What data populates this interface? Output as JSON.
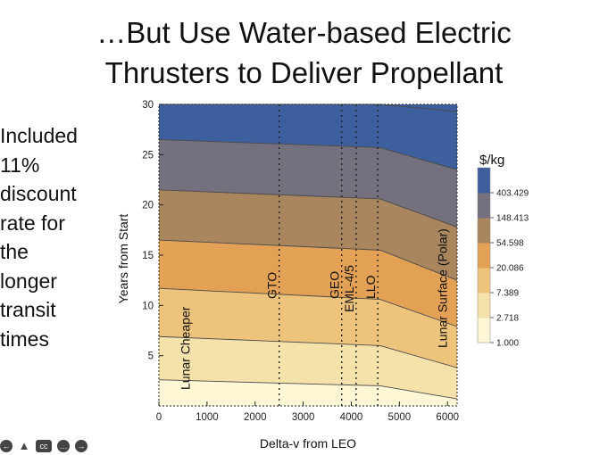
{
  "slide": {
    "title_line1": "…But Use Water-based Electric",
    "title_line2": "Thrusters to Deliver Propellant",
    "side_text": [
      "Included",
      "11%",
      "discount",
      "rate for",
      "the",
      "longer",
      "transit",
      "times"
    ]
  },
  "controls": [
    "prev-icon",
    "pointer-icon",
    "captions-icon",
    "more-icon",
    "next-icon"
  ],
  "chart_data": {
    "type": "contour",
    "xlabel": "Delta-v from LEO",
    "ylabel": "Years from Start",
    "xlim": [
      0,
      6200
    ],
    "ylim": [
      0,
      30
    ],
    "x_ticks": [
      0,
      1000,
      2000,
      3000,
      4000,
      5000,
      6000
    ],
    "y_ticks": [
      5,
      10,
      15,
      20,
      25,
      30
    ],
    "legend_title": "$/kg",
    "legend_values": [
      "403.429",
      "148.413",
      "54.598",
      "20.086",
      "7.389",
      "2.718",
      "1.000"
    ],
    "band_colors": [
      "#fdf7d6",
      "#f5e2ab",
      "#eec47d",
      "#e3a155",
      "#a9865e",
      "#75707d",
      "#3d5f9d"
    ],
    "contour_lines": [
      {
        "level": "403.429",
        "y_left": 2.6,
        "y_break": 2.0,
        "y_right": 0.7
      },
      {
        "level": "148.413",
        "y_left": 6.9,
        "y_break": 6.0,
        "y_right": 3.8
      },
      {
        "level": "54.598",
        "y_left": 11.7,
        "y_break": 10.6,
        "y_right": 7.9
      },
      {
        "level": "20.086",
        "y_left": 16.5,
        "y_break": 15.5,
        "y_right": 12.5
      },
      {
        "level": "7.389",
        "y_left": 21.5,
        "y_break": 20.6,
        "y_right": 17.8
      },
      {
        "level": "2.718",
        "y_left": 26.5,
        "y_break": 25.7,
        "y_right": 23.5
      },
      {
        "level": "1.000",
        "y_left": 31.5,
        "y_break": 31.0,
        "y_right": 29.3
      }
    ],
    "x_break": 4600,
    "markers": [
      {
        "x": 180,
        "label": "Lunar Cheaper"
      },
      {
        "x": 2500,
        "label": "GTO"
      },
      {
        "x": 3800,
        "label": "GEO"
      },
      {
        "x": 4100,
        "label": "EML-4/5"
      },
      {
        "x": 4550,
        "label": "LLO"
      },
      {
        "x": 6150,
        "label": "Lunar Surface (Polar)"
      }
    ]
  }
}
